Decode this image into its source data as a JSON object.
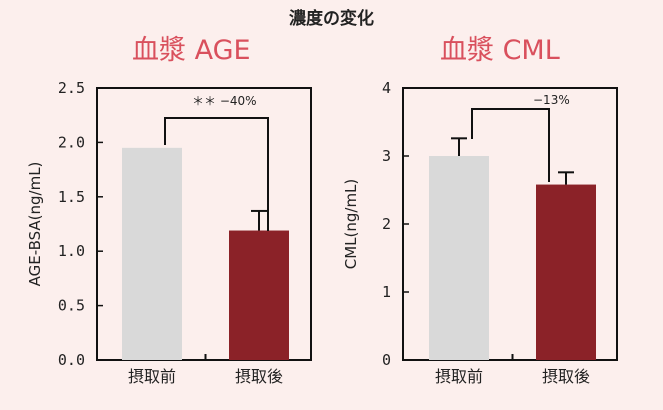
{
  "page": {
    "title": "濃度の変化"
  },
  "colors": {
    "before": "#d9d9d9",
    "after": "#8b2228",
    "title": "#d9505d",
    "background": "#fcefed"
  },
  "chart_data": [
    {
      "type": "bar",
      "title": "血漿 AGE",
      "ylabel": "AGE-BSA(ng/mL)",
      "categories": [
        "摂取前",
        "摂取後"
      ],
      "values": [
        1.95,
        1.19
      ],
      "errors": [
        0,
        0.18
      ],
      "ylim": [
        0,
        2.5
      ],
      "yticks": [
        0,
        0.5,
        1.0,
        1.5,
        2.0,
        2.5
      ],
      "yticklabels": [
        "0.0",
        "0.5",
        "1.0",
        "1.5",
        "2.0",
        "2.5"
      ],
      "annotation": "＊＊ −40%",
      "grid": false
    },
    {
      "type": "bar",
      "title": "血漿 CML",
      "ylabel": "CML(ng/mL)",
      "categories": [
        "摂取前",
        "摂取後"
      ],
      "values": [
        3.0,
        2.58
      ],
      "errors": [
        0.26,
        0.18
      ],
      "ylim": [
        0,
        4
      ],
      "yticks": [
        0,
        1,
        2,
        3,
        4
      ],
      "yticklabels": [
        "0",
        "1",
        "2",
        "3",
        "4"
      ],
      "annotation": "−13%",
      "grid": false
    }
  ]
}
